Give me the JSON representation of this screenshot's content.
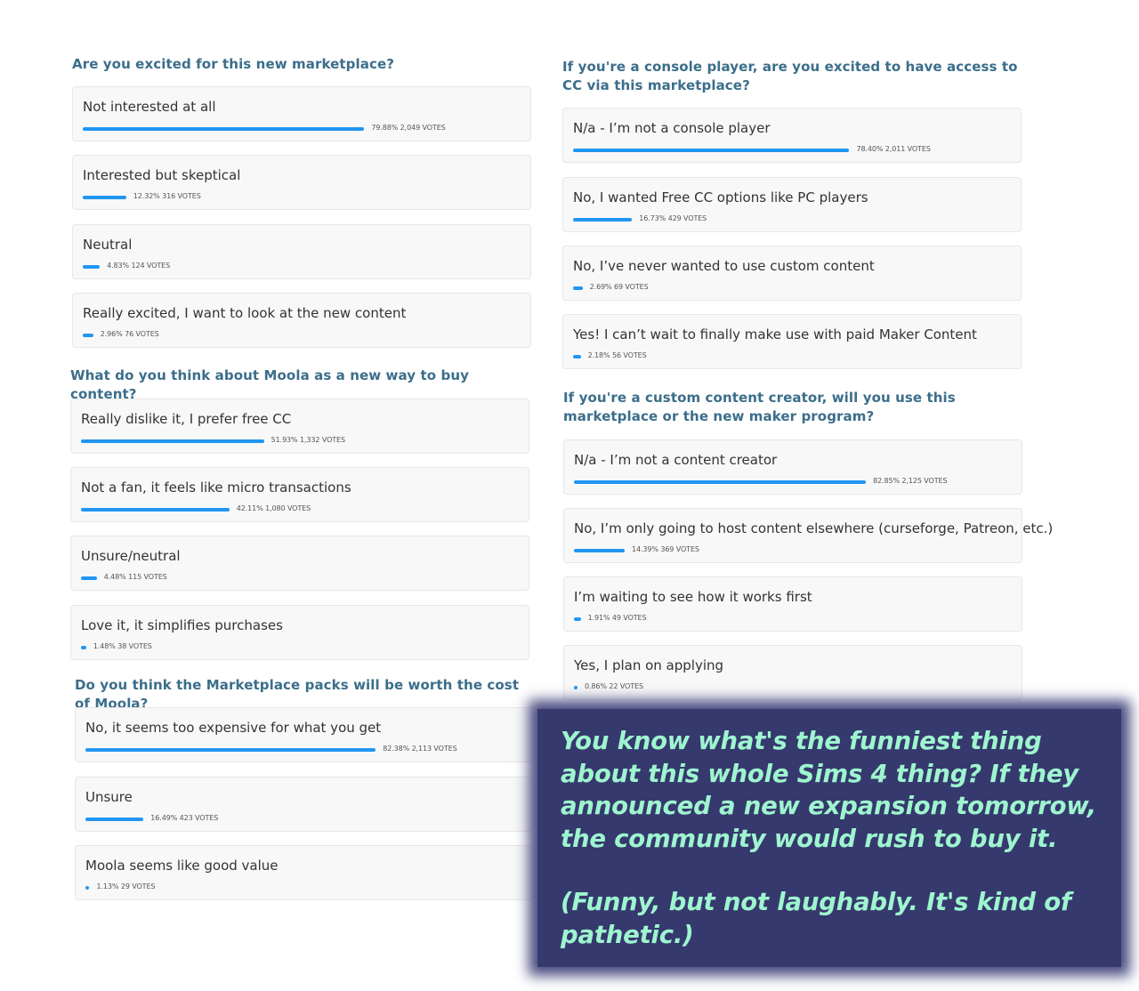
{
  "polls": [
    {
      "question": "Are you excited for this new marketplace?",
      "options": [
        {
          "label": "Not interested at all",
          "percent": 79.88,
          "stat": "79.88% 2,049 VOTES"
        },
        {
          "label": "Interested but skeptical",
          "percent": 12.32,
          "stat": "12.32% 316 VOTES"
        },
        {
          "label": "Neutral",
          "percent": 4.83,
          "stat": "4.83% 124 VOTES"
        },
        {
          "label": "Really excited, I want to look at the new content",
          "percent": 2.96,
          "stat": "2.96% 76 VOTES"
        }
      ]
    },
    {
      "question": "What do you think about Moola as a new way to buy content?",
      "options": [
        {
          "label": "Really dislike it, I prefer free CC",
          "percent": 51.93,
          "stat": "51.93% 1,332 VOTES"
        },
        {
          "label": "Not a fan, it feels like micro transactions",
          "percent": 42.11,
          "stat": "42.11% 1,080 VOTES"
        },
        {
          "label": "Unsure/neutral",
          "percent": 4.48,
          "stat": "4.48% 115 VOTES"
        },
        {
          "label": "Love it, it simplifies purchases",
          "percent": 1.48,
          "stat": "1.48% 38 VOTES"
        }
      ]
    },
    {
      "question": "Do you think the Marketplace packs will be worth the cost of Moola?",
      "options": [
        {
          "label": "No, it seems too expensive for what you get",
          "percent": 82.38,
          "stat": "82.38% 2,113 VOTES"
        },
        {
          "label": "Unsure",
          "percent": 16.49,
          "stat": "16.49% 423 VOTES"
        },
        {
          "label": "Moola seems like good value",
          "percent": 1.13,
          "stat": "1.13% 29 VOTES"
        }
      ]
    },
    {
      "question": "If you're a console player, are you excited to have access to CC via this marketplace?",
      "options": [
        {
          "label": "N/a - I’m not a console player",
          "percent": 78.4,
          "stat": "78.40% 2,011 VOTES"
        },
        {
          "label": "No, I wanted Free CC options like PC players",
          "percent": 16.73,
          "stat": "16.73% 429 VOTES"
        },
        {
          "label": "No, I’ve never wanted to use custom content",
          "percent": 2.69,
          "stat": "2.69% 69 VOTES"
        },
        {
          "label": "Yes! I can’t wait to finally make use with paid Maker Content",
          "percent": 2.18,
          "stat": "2.18% 56 VOTES"
        }
      ]
    },
    {
      "question": "If you're a custom content creator, will you use this marketplace or the new maker program?",
      "options": [
        {
          "label": "N/a - I’m not a content creator",
          "percent": 82.85,
          "stat": "82.85% 2,125 VOTES"
        },
        {
          "label": "No, I’m only going to host content elsewhere (curseforge, Patreon, etc.)",
          "percent": 14.39,
          "stat": "14.39% 369 VOTES"
        },
        {
          "label": "I’m waiting to see how it works first",
          "percent": 1.91,
          "stat": "1.91% 49 VOTES"
        },
        {
          "label": "Yes, I plan on applying",
          "percent": 0.86,
          "stat": "0.86% 22 VOTES"
        }
      ]
    }
  ],
  "overlay": {
    "paragraph1": "You know what's the funniest thing about this whole Sims 4 thing? If they announced a new expansion tomorrow, the community would rush to buy it.",
    "paragraph2": "(Funny, but not laughably. It's kind of pathetic.)",
    "background_color": "#36396d",
    "text_color": "#9ef5cf"
  },
  "colors": {
    "question_text": "#3b6e8a",
    "bar": "#2196f3",
    "option_background": "#f8f8f8"
  }
}
